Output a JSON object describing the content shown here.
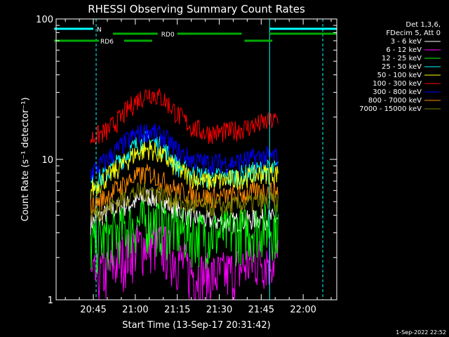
{
  "chart_data": {
    "type": "line",
    "title": "RHESSI Observing Summary Count Rates",
    "xlabel": "Start Time (13-Sep-17 20:31:42)",
    "ylabel": "Count Rate (s⁻¹ detector⁻¹)",
    "y_scale": "log",
    "ylim": [
      1,
      100
    ],
    "xlim": [
      "20:31:42",
      "22:12:00"
    ],
    "y_ticks": [
      "1",
      "10",
      "100"
    ],
    "x_ticks": [
      "20:45",
      "21:00",
      "21:15",
      "21:30",
      "21:45",
      "22:00"
    ],
    "grid": false,
    "legend_position": "top-right",
    "legend_header": [
      "Det 1,3,6,",
      "FDecim 5, Att 0"
    ],
    "data_start": "20:44:00",
    "data_end": "21:51:00",
    "series": [
      {
        "name": "3 - 6 keV",
        "color": "#ffffff",
        "x": [
          "20:44",
          "20:50",
          "20:55",
          "21:00",
          "21:05",
          "21:10",
          "21:15",
          "21:20",
          "21:25",
          "21:30",
          "21:35",
          "21:40",
          "21:45",
          "21:50"
        ],
        "values": [
          3.5,
          4.2,
          4.6,
          5.0,
          5.5,
          5.0,
          4.4,
          3.9,
          3.7,
          3.6,
          3.6,
          3.7,
          3.8,
          3.8
        ]
      },
      {
        "name": "6 - 12 keV",
        "color": "#ff00ff",
        "x": [
          "20:44",
          "20:50",
          "20:55",
          "21:00",
          "21:05",
          "21:10",
          "21:15",
          "21:20",
          "21:25",
          "21:30",
          "21:35",
          "21:40",
          "21:45",
          "21:50"
        ],
        "values": [
          1.4,
          1.6,
          2.0,
          2.4,
          2.6,
          2.4,
          2.0,
          1.6,
          1.5,
          1.5,
          1.6,
          1.8,
          2.0,
          2.0
        ]
      },
      {
        "name": "12 - 25 keV",
        "color": "#00ff00",
        "x": [
          "20:44",
          "20:50",
          "20:55",
          "21:00",
          "21:05",
          "21:10",
          "21:15",
          "21:20",
          "21:25",
          "21:30",
          "21:35",
          "21:40",
          "21:45",
          "21:50"
        ],
        "values": [
          2.5,
          2.8,
          3.2,
          3.5,
          3.7,
          3.5,
          3.2,
          3.0,
          3.0,
          3.0,
          3.1,
          3.2,
          3.4,
          3.4
        ]
      },
      {
        "name": "25 - 50 keV",
        "color": "#00ffff",
        "x": [
          "20:44",
          "20:50",
          "20:55",
          "21:00",
          "21:05",
          "21:10",
          "21:15",
          "21:20",
          "21:25",
          "21:30",
          "21:35",
          "21:40",
          "21:45",
          "21:50"
        ],
        "values": [
          6.5,
          8.0,
          10.0,
          12.5,
          14.0,
          12.0,
          9.0,
          8.0,
          7.5,
          7.5,
          7.5,
          8.0,
          8.5,
          8.5
        ]
      },
      {
        "name": "50 - 100 keV",
        "color": "#ffff00",
        "x": [
          "20:44",
          "20:50",
          "20:55",
          "21:00",
          "21:05",
          "21:10",
          "21:15",
          "21:20",
          "21:25",
          "21:30",
          "21:35",
          "21:40",
          "21:45",
          "21:50"
        ],
        "values": [
          6.0,
          7.5,
          9.0,
          11.0,
          12.0,
          10.5,
          8.5,
          7.5,
          7.0,
          7.0,
          7.2,
          7.5,
          8.0,
          8.0
        ]
      },
      {
        "name": "100 - 300 keV",
        "color": "#ff0000",
        "x": [
          "20:44",
          "20:50",
          "20:55",
          "21:00",
          "21:05",
          "21:10",
          "21:15",
          "21:20",
          "21:25",
          "21:30",
          "21:35",
          "21:40",
          "21:45",
          "21:50"
        ],
        "values": [
          14,
          16,
          20,
          26,
          30,
          27,
          21,
          17,
          15.5,
          15.5,
          16,
          17,
          18,
          19
        ]
      },
      {
        "name": "300 - 800 keV",
        "color": "#0000ff",
        "x": [
          "20:44",
          "20:50",
          "20:55",
          "21:00",
          "21:05",
          "21:10",
          "21:15",
          "21:20",
          "21:25",
          "21:30",
          "21:35",
          "21:40",
          "21:45",
          "21:50"
        ],
        "values": [
          8.0,
          10.0,
          12.5,
          15.0,
          16.0,
          14.5,
          11.5,
          10.0,
          9.5,
          9.5,
          9.5,
          10.0,
          10.5,
          10.5
        ]
      },
      {
        "name": "800 - 7000 keV",
        "color": "#ff8c00",
        "x": [
          "20:44",
          "20:50",
          "20:55",
          "21:00",
          "21:05",
          "21:10",
          "21:15",
          "21:20",
          "21:25",
          "21:30",
          "21:35",
          "21:40",
          "21:45",
          "21:50"
        ],
        "values": [
          4.6,
          5.5,
          6.5,
          7.5,
          8.0,
          7.0,
          6.0,
          5.6,
          5.4,
          5.4,
          5.5,
          5.7,
          6.0,
          6.0
        ]
      },
      {
        "name": "7000 - 15000 keV",
        "color": "#808000",
        "x": [
          "20:44",
          "20:50",
          "20:55",
          "21:00",
          "21:05",
          "21:10",
          "21:15",
          "21:20",
          "21:25",
          "21:30",
          "21:35",
          "21:40",
          "21:45",
          "21:50"
        ],
        "values": [
          4.0,
          4.5,
          5.2,
          5.8,
          6.0,
          5.5,
          5.0,
          4.7,
          4.6,
          4.6,
          4.7,
          4.9,
          5.0,
          5.0
        ]
      }
    ],
    "annotations": [
      {
        "text": "N",
        "color": "#00ffff",
        "segments": [
          [
            "20:31",
            "20:45"
          ],
          [
            "21:48",
            "22:12"
          ]
        ]
      },
      {
        "text": "RD0",
        "color": "#00aa00",
        "segments": [
          [
            "20:52",
            "21:08"
          ],
          [
            "21:15",
            "21:38"
          ],
          [
            "21:48",
            "22:12"
          ]
        ]
      },
      {
        "text": "RD6",
        "color": "#00aa00",
        "segments": [
          [
            "20:31",
            "20:47"
          ],
          [
            "20:56",
            "21:06"
          ],
          [
            "21:39",
            "21:49"
          ]
        ]
      }
    ],
    "markers": {
      "cyan_solid": [
        "20:31:42",
        "21:48"
      ],
      "cyan_dashed": [
        "20:46",
        "22:07"
      ]
    }
  },
  "footer_timestamp": "1-Sep-2022 22:52"
}
